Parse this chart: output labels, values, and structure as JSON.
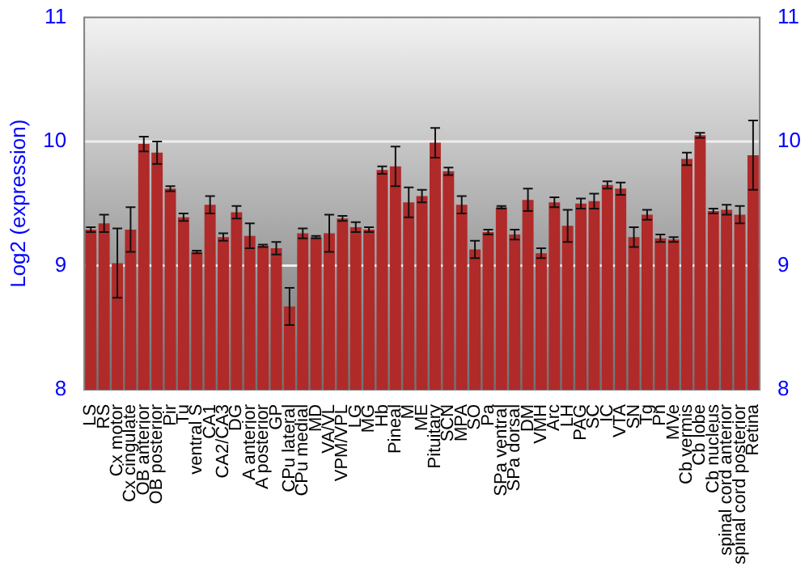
{
  "chart_data": {
    "type": "bar",
    "ylabel": "Log2 (expression)",
    "categories": [
      "LS",
      "RS",
      "Cx motor",
      "Cx cingulate",
      "OB anterior",
      "OB posterior",
      "Pir",
      "Tu",
      "ventral S",
      "CA1",
      "CA2/CA3",
      "DG",
      "A anterior",
      "A posterior",
      "GP",
      "CPu lateral",
      "CPu medial",
      "MD",
      "VA/VL",
      "VPM/VPL",
      "LG",
      "MG",
      "Hb",
      "Pineal",
      "M",
      "ME",
      "Pituitary",
      "SCN",
      "MPA",
      "SO",
      "Pa",
      "SPa ventral",
      "SPa dorsal",
      "DM",
      "VMH",
      "Arc",
      "LH",
      "PAG",
      "SC",
      "IC",
      "VTA",
      "SN",
      "Tg",
      "Pn",
      "MVe",
      "Cb vermis",
      "Cb lobe",
      "Cb nucleus",
      "spinal cord anterior",
      "spinal cord posterior",
      "Retina"
    ],
    "values": [
      9.29,
      9.34,
      9.02,
      9.29,
      9.98,
      9.91,
      9.62,
      9.39,
      9.11,
      9.49,
      9.23,
      9.43,
      9.24,
      9.16,
      9.14,
      8.67,
      9.26,
      9.23,
      9.26,
      9.38,
      9.31,
      9.29,
      9.77,
      9.8,
      9.51,
      9.56,
      9.99,
      9.76,
      9.49,
      9.13,
      9.27,
      9.47,
      9.25,
      9.53,
      9.1,
      9.51,
      9.32,
      9.5,
      9.52,
      9.65,
      9.62,
      9.23,
      9.41,
      9.22,
      9.21,
      9.86,
      10.05,
      9.44,
      9.45,
      9.41,
      9.89
    ],
    "errors": [
      0.02,
      0.07,
      0.28,
      0.18,
      0.06,
      0.09,
      0.02,
      0.03,
      0.01,
      0.07,
      0.03,
      0.05,
      0.1,
      0.01,
      0.05,
      0.15,
      0.04,
      0.01,
      0.15,
      0.02,
      0.04,
      0.02,
      0.03,
      0.16,
      0.12,
      0.05,
      0.12,
      0.03,
      0.07,
      0.07,
      0.02,
      0.01,
      0.04,
      0.09,
      0.04,
      0.04,
      0.13,
      0.04,
      0.06,
      0.03,
      0.05,
      0.08,
      0.04,
      0.03,
      0.02,
      0.05,
      0.02,
      0.02,
      0.04,
      0.07,
      0.28
    ],
    "color": "#b02a2a",
    "ylim": [
      8,
      11
    ],
    "yticks": [
      8,
      9,
      10,
      11
    ],
    "y2lim": [
      8,
      11
    ],
    "y2ticks": [
      8,
      9,
      10,
      11
    ],
    "grid": "y",
    "legend": false
  }
}
